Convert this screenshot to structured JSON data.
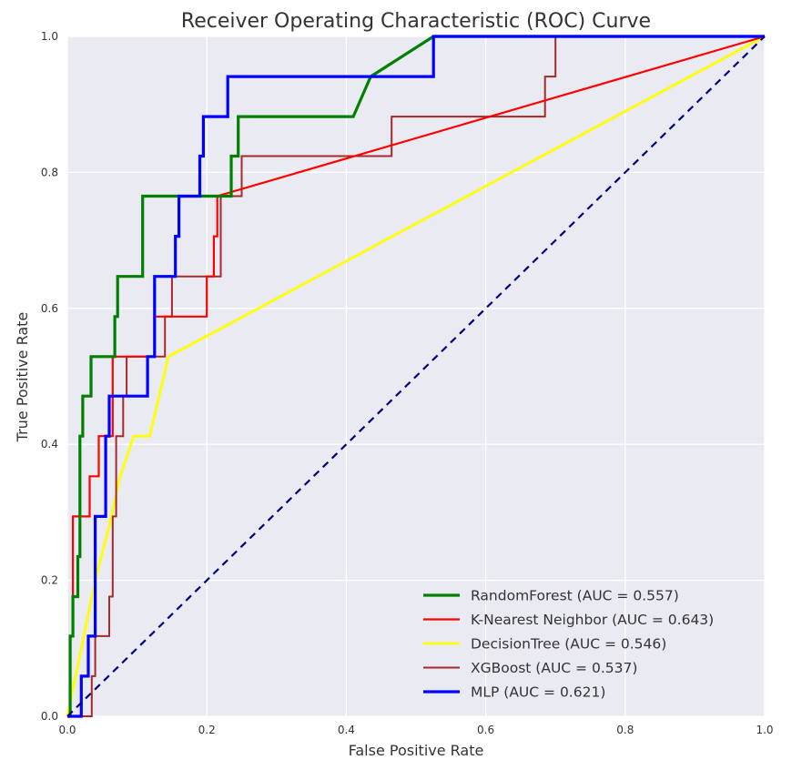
{
  "chart_data": {
    "type": "line",
    "title": "Receiver Operating Characteristic (ROC) Curve",
    "xlabel": "False Positive Rate",
    "ylabel": "True Positive Rate",
    "xlim": [
      0,
      1
    ],
    "ylim": [
      0,
      1
    ],
    "xticks": [
      "0.0",
      "0.2",
      "0.4",
      "0.6",
      "0.8",
      "1.0"
    ],
    "yticks": [
      "0.0",
      "0.2",
      "0.4",
      "0.6",
      "0.8",
      "1.0"
    ],
    "grid": true,
    "legend_position": "lower-right",
    "colors": {
      "background": "#EAEAF2",
      "grid": "#FFFFFF"
    },
    "baseline": {
      "x": [
        0,
        1
      ],
      "y": [
        0,
        1
      ],
      "color": "#000080",
      "style": "dashed"
    },
    "series": [
      {
        "name": "RandomForest (AUC = 0.557)",
        "color": "#008000",
        "x": [
          0,
          0.004,
          0.004,
          0.008,
          0.008,
          0.015,
          0.015,
          0.018,
          0.018,
          0.022,
          0.022,
          0.034,
          0.034,
          0.038,
          0.038,
          0.068,
          0.068,
          0.072,
          0.072,
          0.108,
          0.108,
          0.235,
          0.235,
          0.245,
          0.245,
          0.41,
          0.435,
          0.525,
          1.0
        ],
        "y": [
          0,
          0,
          0.118,
          0.118,
          0.176,
          0.176,
          0.235,
          0.235,
          0.412,
          0.412,
          0.471,
          0.471,
          0.529,
          0.529,
          0.529,
          0.529,
          0.588,
          0.588,
          0.647,
          0.647,
          0.765,
          0.765,
          0.824,
          0.824,
          0.882,
          0.882,
          0.941,
          1.0,
          1.0
        ]
      },
      {
        "name": "K-Nearest Neighbor (AUC = 0.643)",
        "color": "#FF0000",
        "x": [
          0,
          0.004,
          0.004,
          0.008,
          0.008,
          0.032,
          0.032,
          0.045,
          0.045,
          0.065,
          0.065,
          0.125,
          0.125,
          0.2,
          0.2,
          0.21,
          0.21,
          0.215,
          0.215,
          1.0
        ],
        "y": [
          0,
          0,
          0.118,
          0.118,
          0.294,
          0.294,
          0.353,
          0.353,
          0.412,
          0.412,
          0.529,
          0.529,
          0.588,
          0.588,
          0.647,
          0.647,
          0.706,
          0.706,
          0.765,
          1.0
        ]
      },
      {
        "name": "DecisionTree (AUC = 0.546)",
        "color": "#FFFF00",
        "x": [
          0,
          0.02,
          0.04,
          0.06,
          0.075,
          0.095,
          0.118,
          0.145,
          1.0
        ],
        "y": [
          0,
          0.1,
          0.2,
          0.28,
          0.35,
          0.412,
          0.412,
          0.529,
          1.0
        ]
      },
      {
        "name": "XGBoost (AUC = 0.537)",
        "color": "#A52A2A",
        "x": [
          0,
          0.035,
          0.035,
          0.04,
          0.04,
          0.06,
          0.06,
          0.065,
          0.065,
          0.07,
          0.07,
          0.08,
          0.08,
          0.085,
          0.085,
          0.1,
          0.1,
          0.14,
          0.14,
          0.15,
          0.15,
          0.165,
          0.165,
          0.22,
          0.22,
          0.235,
          0.235,
          0.25,
          0.25,
          0.465,
          0.465,
          0.685,
          0.685,
          0.7,
          0.7,
          1.0
        ],
        "y": [
          0,
          0,
          0.059,
          0.059,
          0.118,
          0.118,
          0.176,
          0.176,
          0.294,
          0.294,
          0.412,
          0.412,
          0.471,
          0.471,
          0.529,
          0.529,
          0.529,
          0.529,
          0.588,
          0.588,
          0.647,
          0.647,
          0.647,
          0.647,
          0.765,
          0.765,
          0.765,
          0.765,
          0.824,
          0.824,
          0.882,
          0.882,
          0.941,
          0.941,
          1.0,
          1.0
        ]
      },
      {
        "name": "MLP (AUC = 0.621)",
        "color": "#0000FF",
        "x": [
          0,
          0.02,
          0.02,
          0.03,
          0.03,
          0.04,
          0.04,
          0.055,
          0.055,
          0.06,
          0.06,
          0.065,
          0.065,
          0.115,
          0.115,
          0.125,
          0.125,
          0.155,
          0.155,
          0.16,
          0.16,
          0.19,
          0.19,
          0.195,
          0.195,
          0.23,
          0.23,
          0.525,
          0.525,
          1.0
        ],
        "y": [
          0,
          0,
          0.059,
          0.059,
          0.118,
          0.118,
          0.294,
          0.294,
          0.412,
          0.412,
          0.471,
          0.471,
          0.471,
          0.471,
          0.529,
          0.529,
          0.647,
          0.647,
          0.706,
          0.706,
          0.765,
          0.765,
          0.824,
          0.824,
          0.882,
          0.882,
          0.941,
          0.941,
          1.0,
          1.0
        ]
      }
    ]
  }
}
